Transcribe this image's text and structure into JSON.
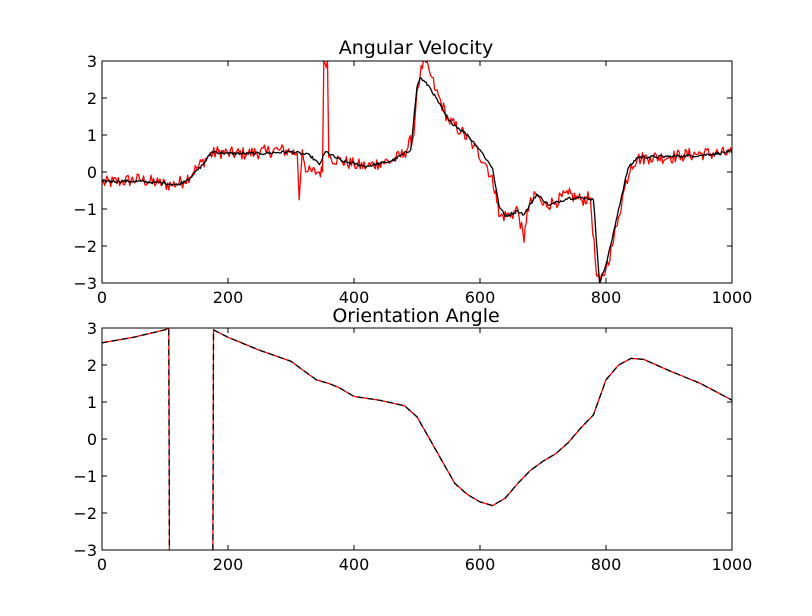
{
  "chart_data": [
    {
      "type": "line",
      "title": "Angular Velocity",
      "xlabel": "",
      "ylabel": "",
      "xlim": [
        0,
        1000
      ],
      "ylim": [
        -3,
        3
      ],
      "xticks": [
        "0",
        "200",
        "400",
        "600",
        "800",
        "1000"
      ],
      "yticks": [
        "3",
        "2",
        "1",
        "0",
        "−1",
        "−2",
        "−3"
      ],
      "grid": false,
      "series": [
        {
          "color": "#ff0000",
          "style": "solid",
          "points": [
            [
              0,
              -0.3
            ],
            [
              30,
              -0.25
            ],
            [
              60,
              -0.2
            ],
            [
              90,
              -0.3
            ],
            [
              110,
              -0.35
            ],
            [
              130,
              -0.25
            ],
            [
              150,
              0.1
            ],
            [
              170,
              0.45
            ],
            [
              185,
              0.55
            ],
            [
              200,
              0.5
            ],
            [
              230,
              0.5
            ],
            [
              260,
              0.55
            ],
            [
              280,
              0.6
            ],
            [
              300,
              0.55
            ],
            [
              310,
              0.5
            ],
            [
              313,
              -0.75
            ],
            [
              318,
              0.6
            ],
            [
              325,
              0.0
            ],
            [
              345,
              0.0
            ],
            [
              350,
              0.0
            ],
            [
              352,
              3.0
            ],
            [
              358,
              3.0
            ],
            [
              360,
              0.4
            ],
            [
              380,
              0.3
            ],
            [
              400,
              0.2
            ],
            [
              420,
              0.15
            ],
            [
              440,
              0.25
            ],
            [
              460,
              0.3
            ],
            [
              480,
              0.5
            ],
            [
              495,
              1.0
            ],
            [
              500,
              2.2
            ],
            [
              505,
              2.6
            ],
            [
              510,
              3.0
            ],
            [
              520,
              2.7
            ],
            [
              530,
              2.2
            ],
            [
              550,
              1.4
            ],
            [
              570,
              1.1
            ],
            [
              590,
              0.7
            ],
            [
              610,
              0.2
            ],
            [
              625,
              -0.5
            ],
            [
              630,
              -1.2
            ],
            [
              650,
              -1.15
            ],
            [
              660,
              -1.0
            ],
            [
              670,
              -1.9
            ],
            [
              675,
              -1.0
            ],
            [
              690,
              -0.6
            ],
            [
              700,
              -0.9
            ],
            [
              720,
              -0.8
            ],
            [
              740,
              -0.6
            ],
            [
              760,
              -0.75
            ],
            [
              775,
              -0.7
            ],
            [
              785,
              -2.8
            ],
            [
              790,
              -3.0
            ],
            [
              800,
              -2.6
            ],
            [
              810,
              -2.0
            ],
            [
              820,
              -1.2
            ],
            [
              830,
              -0.4
            ],
            [
              840,
              0.2
            ],
            [
              850,
              0.35
            ],
            [
              870,
              0.4
            ],
            [
              900,
              0.4
            ],
            [
              920,
              0.45
            ],
            [
              950,
              0.5
            ],
            [
              980,
              0.5
            ],
            [
              1000,
              0.5
            ]
          ]
        },
        {
          "color": "#000000",
          "style": "solid",
          "points": [
            [
              0,
              -0.25
            ],
            [
              50,
              -0.25
            ],
            [
              100,
              -0.3
            ],
            [
              120,
              -0.35
            ],
            [
              140,
              -0.15
            ],
            [
              160,
              0.2
            ],
            [
              175,
              0.55
            ],
            [
              200,
              0.5
            ],
            [
              250,
              0.5
            ],
            [
              300,
              0.55
            ],
            [
              330,
              0.45
            ],
            [
              345,
              0.2
            ],
            [
              355,
              0.55
            ],
            [
              380,
              0.3
            ],
            [
              420,
              0.15
            ],
            [
              460,
              0.3
            ],
            [
              490,
              0.6
            ],
            [
              500,
              2.3
            ],
            [
              505,
              2.55
            ],
            [
              520,
              2.3
            ],
            [
              550,
              1.4
            ],
            [
              580,
              1.0
            ],
            [
              600,
              0.6
            ],
            [
              620,
              0.1
            ],
            [
              630,
              -0.9
            ],
            [
              640,
              -1.2
            ],
            [
              660,
              -1.05
            ],
            [
              670,
              -1.15
            ],
            [
              690,
              -0.6
            ],
            [
              710,
              -0.9
            ],
            [
              740,
              -0.7
            ],
            [
              770,
              -0.7
            ],
            [
              780,
              -0.75
            ],
            [
              790,
              -3.0
            ],
            [
              800,
              -2.5
            ],
            [
              810,
              -1.8
            ],
            [
              820,
              -1.0
            ],
            [
              835,
              0.1
            ],
            [
              850,
              0.4
            ],
            [
              900,
              0.42
            ],
            [
              950,
              0.45
            ],
            [
              1000,
              0.55
            ]
          ]
        }
      ],
      "noise": [
        0.18,
        0.04
      ]
    },
    {
      "type": "line",
      "title": "Orientation Angle",
      "xlabel": "",
      "ylabel": "",
      "xlim": [
        0,
        1000
      ],
      "ylim": [
        -3,
        3
      ],
      "xticks": [
        "0",
        "200",
        "400",
        "600",
        "800",
        "1000"
      ],
      "yticks": [
        "3",
        "2",
        "1",
        "0",
        "−1",
        "−2",
        "−3"
      ],
      "grid": false,
      "series": [
        {
          "color": "#ff0000",
          "style": "solid",
          "points": [
            [
              0,
              2.6
            ],
            [
              50,
              2.75
            ],
            [
              100,
              2.95
            ],
            [
              106,
              3.0
            ],
            [
              107,
              -3.0
            ],
            [
              107,
              null
            ],
            [
              176,
              -3.0
            ],
            [
              177,
              2.95
            ],
            [
              200,
              2.75
            ],
            [
              250,
              2.4
            ],
            [
              300,
              2.1
            ],
            [
              340,
              1.6
            ],
            [
              360,
              1.5
            ],
            [
              375,
              1.4
            ],
            [
              400,
              1.15
            ],
            [
              440,
              1.05
            ],
            [
              480,
              0.9
            ],
            [
              500,
              0.6
            ],
            [
              520,
              0.0
            ],
            [
              540,
              -0.6
            ],
            [
              560,
              -1.2
            ],
            [
              580,
              -1.5
            ],
            [
              600,
              -1.7
            ],
            [
              620,
              -1.8
            ],
            [
              640,
              -1.6
            ],
            [
              660,
              -1.2
            ],
            [
              680,
              -0.85
            ],
            [
              700,
              -0.6
            ],
            [
              720,
              -0.4
            ],
            [
              740,
              -0.1
            ],
            [
              760,
              0.3
            ],
            [
              780,
              0.65
            ],
            [
              800,
              1.6
            ],
            [
              820,
              2.0
            ],
            [
              840,
              2.18
            ],
            [
              860,
              2.15
            ],
            [
              900,
              1.85
            ],
            [
              950,
              1.5
            ],
            [
              1000,
              1.05
            ]
          ]
        },
        {
          "color": "#000000",
          "style": "dashed",
          "points": [
            [
              0,
              2.6
            ],
            [
              50,
              2.75
            ],
            [
              100,
              2.95
            ],
            [
              106,
              3.0
            ],
            [
              107,
              -3.0
            ],
            [
              107,
              null
            ],
            [
              176,
              -3.0
            ],
            [
              177,
              2.95
            ],
            [
              200,
              2.75
            ],
            [
              250,
              2.4
            ],
            [
              300,
              2.1
            ],
            [
              340,
              1.6
            ],
            [
              360,
              1.5
            ],
            [
              375,
              1.4
            ],
            [
              400,
              1.15
            ],
            [
              440,
              1.05
            ],
            [
              480,
              0.9
            ],
            [
              500,
              0.6
            ],
            [
              520,
              0.0
            ],
            [
              540,
              -0.6
            ],
            [
              560,
              -1.2
            ],
            [
              580,
              -1.5
            ],
            [
              600,
              -1.7
            ],
            [
              620,
              -1.8
            ],
            [
              640,
              -1.6
            ],
            [
              660,
              -1.2
            ],
            [
              680,
              -0.85
            ],
            [
              700,
              -0.6
            ],
            [
              720,
              -0.4
            ],
            [
              740,
              -0.1
            ],
            [
              760,
              0.3
            ],
            [
              780,
              0.65
            ],
            [
              800,
              1.6
            ],
            [
              820,
              2.0
            ],
            [
              840,
              2.18
            ],
            [
              860,
              2.15
            ],
            [
              900,
              1.85
            ],
            [
              950,
              1.5
            ],
            [
              1000,
              1.05
            ]
          ]
        }
      ]
    }
  ]
}
